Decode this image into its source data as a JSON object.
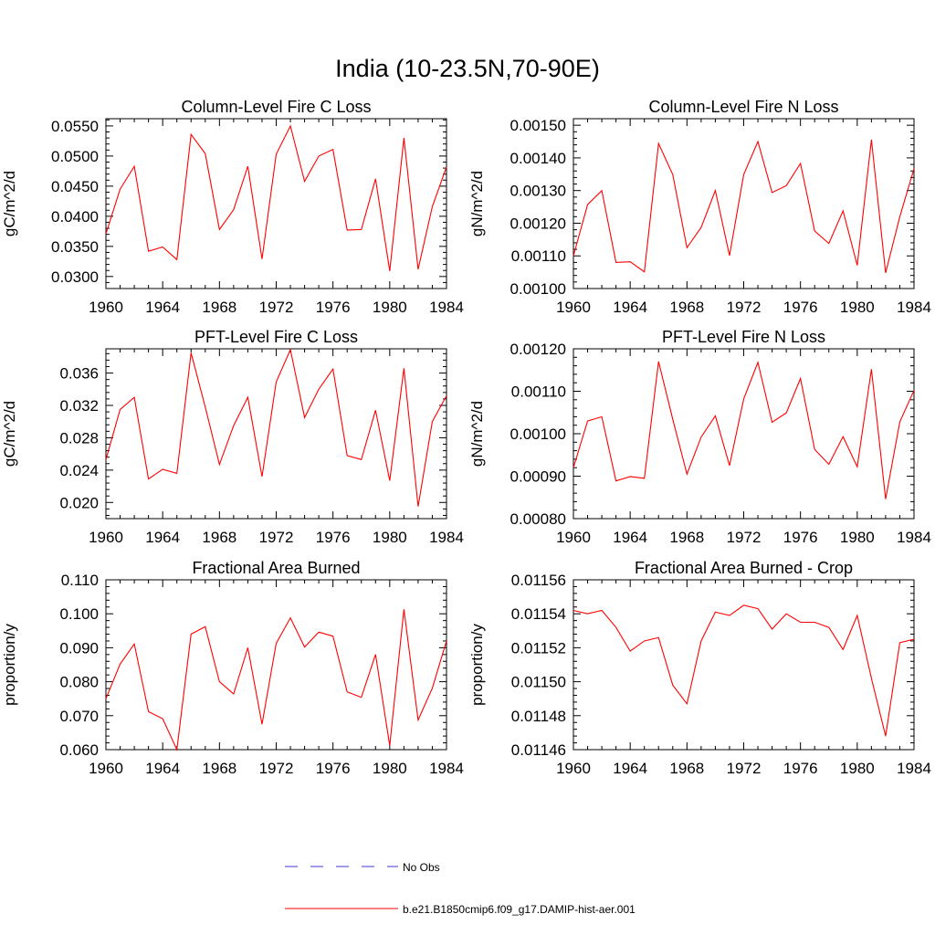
{
  "figure": {
    "title": "India (10-23.5N,70-90E)"
  },
  "legend": {
    "obs_label": "No Obs",
    "obs_color": "#3b3bd9",
    "model_label": "b.e21.B1850cmip6.f09_g17.DAMIP-hist-aer.001",
    "model_color": "#ff0000"
  },
  "chart_data": [
    {
      "type": "line",
      "title": "Column-Level Fire C Loss",
      "ylabel": "gC/m^2/d",
      "xlim": [
        1960,
        1984
      ],
      "ylim": [
        0.028,
        0.0562
      ],
      "xticks": [
        1960,
        1964,
        1968,
        1972,
        1976,
        1980,
        1984
      ],
      "yticks": [
        "0.0300",
        "0.0350",
        "0.0400",
        "0.0450",
        "0.0500",
        "0.0550"
      ],
      "x": [
        1960,
        1961,
        1962,
        1963,
        1964,
        1965,
        1966,
        1967,
        1968,
        1969,
        1970,
        1971,
        1972,
        1973,
        1974,
        1975,
        1976,
        1977,
        1978,
        1979,
        1980,
        1981,
        1982,
        1983,
        1984
      ],
      "series": [
        {
          "values": [
            0.0371,
            0.0445,
            0.0483,
            0.0342,
            0.0349,
            0.0328,
            0.0536,
            0.0504,
            0.0378,
            0.0411,
            0.0483,
            0.0329,
            0.0503,
            0.055,
            0.0458,
            0.05,
            0.0511,
            0.0377,
            0.0378,
            0.0462,
            0.0309,
            0.053,
            0.0312,
            0.0416,
            0.0482
          ]
        }
      ]
    },
    {
      "type": "line",
      "title": "Column-Level Fire N Loss",
      "ylabel": "gN/m^2/d",
      "xlim": [
        1960,
        1984
      ],
      "ylim": [
        0.001,
        0.00152
      ],
      "xticks": [
        1960,
        1964,
        1968,
        1972,
        1976,
        1980,
        1984
      ],
      "yticks": [
        "0.00100",
        "0.00110",
        "0.00120",
        "0.00130",
        "0.00140",
        "0.00150"
      ],
      "x": [
        1960,
        1961,
        1962,
        1963,
        1964,
        1965,
        1966,
        1967,
        1968,
        1969,
        1970,
        1971,
        1972,
        1973,
        1974,
        1975,
        1976,
        1977,
        1978,
        1979,
        1980,
        1981,
        1982,
        1983,
        1984
      ],
      "series": [
        {
          "values": [
            0.0011,
            0.001257,
            0.0013,
            0.00108,
            0.001082,
            0.001051,
            0.001444,
            0.001349,
            0.001125,
            0.001187,
            0.0013,
            0.001101,
            0.001349,
            0.00145,
            0.001294,
            0.001315,
            0.001383,
            0.001176,
            0.001138,
            0.001238,
            0.001071,
            0.001456,
            0.001048,
            0.00122,
            0.001367
          ]
        }
      ]
    },
    {
      "type": "line",
      "title": "PFT-Level Fire C Loss",
      "ylabel": "gC/m^2/d",
      "xlim": [
        1960,
        1984
      ],
      "ylim": [
        0.018,
        0.039
      ],
      "xticks": [
        1960,
        1964,
        1968,
        1972,
        1976,
        1980,
        1984
      ],
      "yticks": [
        "0.020",
        "0.024",
        "0.028",
        "0.032",
        "0.036"
      ],
      "x": [
        1960,
        1961,
        1962,
        1963,
        1964,
        1965,
        1966,
        1967,
        1968,
        1969,
        1970,
        1971,
        1972,
        1973,
        1974,
        1975,
        1976,
        1977,
        1978,
        1979,
        1980,
        1981,
        1982,
        1983,
        1984
      ],
      "series": [
        {
          "values": [
            0.0253,
            0.0315,
            0.033,
            0.0229,
            0.0241,
            0.0236,
            0.0385,
            0.0318,
            0.0247,
            0.0295,
            0.033,
            0.0232,
            0.0349,
            0.0389,
            0.0305,
            0.034,
            0.0365,
            0.0258,
            0.0253,
            0.0314,
            0.0227,
            0.0366,
            0.0195,
            0.03,
            0.0332
          ]
        }
      ]
    },
    {
      "type": "line",
      "title": "PFT-Level Fire N Loss",
      "ylabel": "gN/m^2/d",
      "xlim": [
        1960,
        1984
      ],
      "ylim": [
        0.0008,
        0.0012
      ],
      "xticks": [
        1960,
        1964,
        1968,
        1972,
        1976,
        1980,
        1984
      ],
      "yticks": [
        "0.00080",
        "0.00090",
        "0.00100",
        "0.00110",
        "0.00120"
      ],
      "x": [
        1960,
        1961,
        1962,
        1963,
        1964,
        1965,
        1966,
        1967,
        1968,
        1969,
        1970,
        1971,
        1972,
        1973,
        1974,
        1975,
        1976,
        1977,
        1978,
        1979,
        1980,
        1981,
        1982,
        1983,
        1984
      ],
      "series": [
        {
          "values": [
            0.00092,
            0.00103,
            0.00104,
            0.000889,
            0.000899,
            0.000895,
            0.00117,
            0.001034,
            0.000905,
            0.000992,
            0.001042,
            0.000925,
            0.001082,
            0.001168,
            0.001027,
            0.001049,
            0.00113,
            0.000963,
            0.000928,
            0.000993,
            0.000922,
            0.001152,
            0.000846,
            0.001028,
            0.001102
          ]
        }
      ]
    },
    {
      "type": "line",
      "title": "Fractional Area Burned",
      "ylabel": "proportion/y",
      "xlim": [
        1960,
        1984
      ],
      "ylim": [
        0.06,
        0.11
      ],
      "xticks": [
        1960,
        1964,
        1968,
        1972,
        1976,
        1980,
        1984
      ],
      "yticks": [
        "0.060",
        "0.070",
        "0.080",
        "0.090",
        "0.100",
        "0.110"
      ],
      "x": [
        1960,
        1961,
        1962,
        1963,
        1964,
        1965,
        1966,
        1967,
        1968,
        1969,
        1970,
        1971,
        1972,
        1973,
        1974,
        1975,
        1976,
        1977,
        1978,
        1979,
        1980,
        1981,
        1982,
        1983,
        1984
      ],
      "series": [
        {
          "values": [
            0.075,
            0.0852,
            0.0911,
            0.0712,
            0.0691,
            0.06,
            0.094,
            0.0962,
            0.08,
            0.0764,
            0.09,
            0.0675,
            0.0913,
            0.0988,
            0.0902,
            0.0946,
            0.0934,
            0.077,
            0.0754,
            0.088,
            0.0612,
            0.1013,
            0.0687,
            0.0781,
            0.092
          ]
        }
      ]
    },
    {
      "type": "line",
      "title": "Fractional Area Burned - Crop",
      "ylabel": "proportion/y",
      "xlim": [
        1960,
        1984
      ],
      "ylim": [
        0.01146,
        0.01156
      ],
      "xticks": [
        1960,
        1964,
        1968,
        1972,
        1976,
        1980,
        1984
      ],
      "yticks": [
        "0.01146",
        "0.01148",
        "0.01150",
        "0.01152",
        "0.01154",
        "0.01156"
      ],
      "x": [
        1960,
        1961,
        1962,
        1963,
        1964,
        1965,
        1966,
        1967,
        1968,
        1969,
        1970,
        1971,
        1972,
        1973,
        1974,
        1975,
        1976,
        1977,
        1978,
        1979,
        1980,
        1981,
        1982,
        1983,
        1984
      ],
      "series": [
        {
          "values": [
            0.011542,
            0.01154,
            0.011542,
            0.011532,
            0.011518,
            0.011524,
            0.011526,
            0.011498,
            0.011487,
            0.011524,
            0.011541,
            0.011539,
            0.011545,
            0.011543,
            0.011531,
            0.01154,
            0.011535,
            0.011535,
            0.011532,
            0.011519,
            0.011539,
            0.011502,
            0.011468,
            0.011523,
            0.011525
          ]
        }
      ]
    }
  ]
}
